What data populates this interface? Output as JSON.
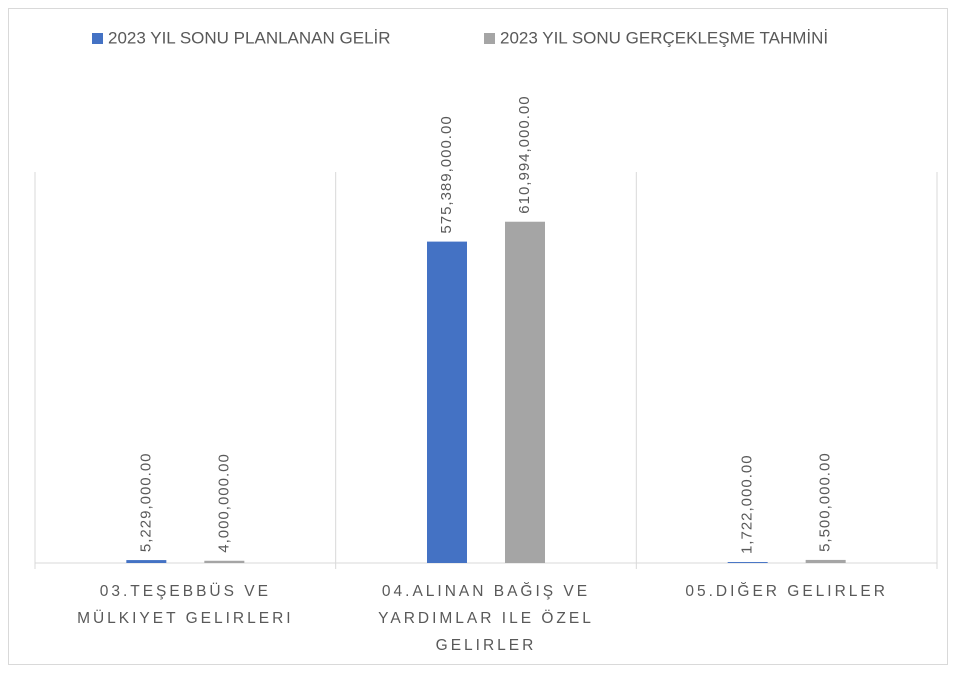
{
  "chart_data": {
    "type": "bar",
    "categories": [
      "03.TEŞEBBÜS VE MÜLKIYET GELIRLERI",
      "04.ALINAN BAĞIŞ VE YARDIMLAR ILE ÖZEL GELIRLER",
      "05.DIĞER GELIRLER"
    ],
    "series": [
      {
        "name": "2023 YIL SONU PLANLANAN GELİR",
        "color": "#4472c4",
        "values": [
          5229000,
          575389000,
          1722000
        ],
        "value_labels": [
          "5,229,000.00",
          "575,389,000.00",
          "1,722,000.00"
        ]
      },
      {
        "name": "2023 YIL SONU GERÇEKLEŞME TAHMİNİ",
        "color": "#a5a5a5",
        "values": [
          4000000,
          610994000,
          5500000
        ],
        "value_labels": [
          "4,000,000.00",
          "610,994,000.00",
          "5,500,000.00"
        ]
      }
    ],
    "ylim": [
      0,
      700000000
    ],
    "legend": "top"
  }
}
